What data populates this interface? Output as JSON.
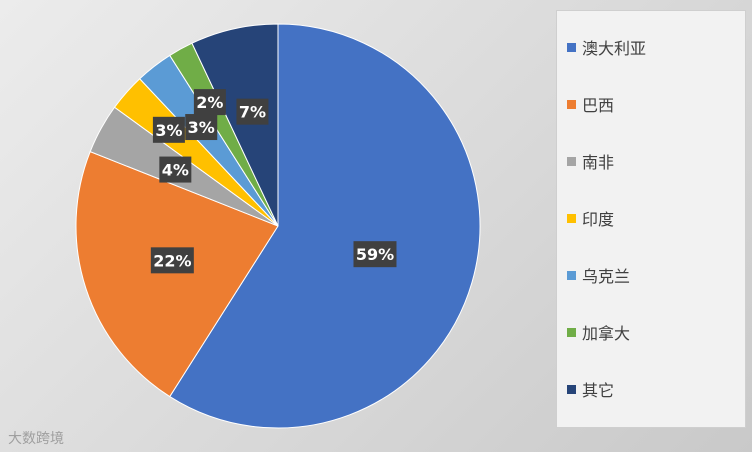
{
  "chart_data": {
    "type": "pie",
    "categories": [
      "澳大利亚",
      "巴西",
      "南非",
      "印度",
      "乌克兰",
      "加拿大",
      "其它"
    ],
    "values": [
      59,
      22,
      4,
      3,
      3,
      2,
      7
    ],
    "data_labels": [
      "59%",
      "22%",
      "4%",
      "3%",
      "3%",
      "2%",
      "7%"
    ],
    "colors": [
      "#4472C4",
      "#ED7D31",
      "#A5A5A5",
      "#FFC000",
      "#5B9BD5",
      "#70AD47",
      "#264478"
    ],
    "legend_position": "right",
    "start_angle": "12 o'clock, clockwise"
  },
  "watermark": "大数跨境"
}
